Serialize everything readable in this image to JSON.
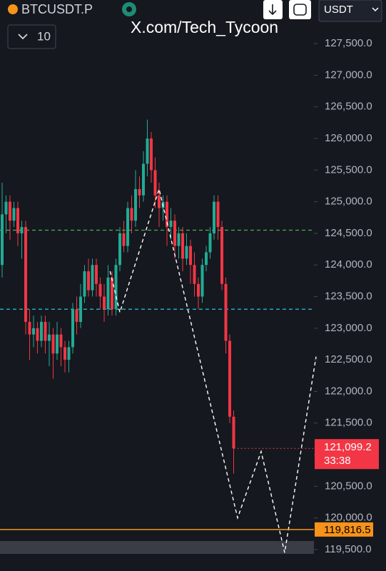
{
  "header": {
    "symbol": "BTCUSDT.P",
    "interval": "10",
    "watermark": "X.com/Tech_Tycoon",
    "quote": "USDT"
  },
  "chart_data": {
    "type": "candlestick",
    "open": [
      124000,
      124800,
      125000,
      124700,
      124900,
      124500,
      124600,
      123100,
      122900,
      123000,
      122800,
      123100,
      122800,
      122900,
      122600,
      122900,
      122700,
      122500,
      122700,
      123300,
      123100,
      123500,
      123900,
      123600,
      124000,
      123700,
      123500,
      123300,
      123800,
      123300,
      124000,
      124500,
      124300,
      124900,
      124700,
      125200,
      125100,
      125600,
      126000,
      125500,
      125100,
      124900,
      125000,
      124600,
      124700,
      124300,
      124500,
      124100,
      124300,
      124000,
      123700,
      123500,
      124000,
      124200,
      124500,
      125000,
      124600,
      123700,
      122800,
      121600
    ],
    "high": [
      125300,
      125100,
      125100,
      125000,
      125000,
      124700,
      124700,
      123300,
      123200,
      123100,
      123200,
      123200,
      123100,
      123000,
      123100,
      123000,
      122800,
      122800,
      123400,
      123500,
      123700,
      124000,
      124100,
      124100,
      124100,
      123800,
      123700,
      124000,
      123900,
      124100,
      124600,
      124700,
      125000,
      125100,
      125500,
      125400,
      125800,
      126300,
      126100,
      125700,
      125300,
      125100,
      125100,
      124900,
      124800,
      124600,
      124600,
      124500,
      124400,
      124200,
      123800,
      124100,
      124300,
      124600,
      125100,
      125100,
      124700,
      123800,
      122900,
      121700
    ],
    "low": [
      123800,
      124500,
      124400,
      124600,
      124300,
      124100,
      122900,
      122500,
      122700,
      122600,
      122700,
      122600,
      122400,
      122200,
      122500,
      122400,
      122300,
      122300,
      122600,
      122900,
      123000,
      123400,
      123500,
      123500,
      123500,
      123300,
      123100,
      123200,
      123200,
      123200,
      123900,
      124200,
      124200,
      124500,
      124600,
      124900,
      125000,
      125400,
      125300,
      124900,
      124600,
      124700,
      124300,
      124400,
      124100,
      124100,
      123900,
      124000,
      123700,
      123500,
      123300,
      123400,
      123900,
      124100,
      124400,
      124400,
      123600,
      122600,
      121500,
      120700
    ],
    "close": [
      124800,
      125000,
      124700,
      124900,
      124500,
      124600,
      123100,
      122900,
      123000,
      122800,
      123100,
      122800,
      122900,
      122600,
      122900,
      122700,
      122500,
      122700,
      123300,
      123100,
      123500,
      123900,
      123600,
      124000,
      123700,
      123500,
      123300,
      123800,
      123300,
      124000,
      124500,
      124300,
      124900,
      124700,
      125200,
      125100,
      125600,
      126000,
      125500,
      125100,
      124900,
      125000,
      124600,
      124700,
      124300,
      124500,
      124100,
      124300,
      124000,
      123700,
      123500,
      124000,
      124200,
      124500,
      125000,
      124600,
      123700,
      122800,
      121600,
      121099.2
    ],
    "up_color": "#22ab94",
    "down_color": "#f23645",
    "ylim": [
      119160,
      128190
    ],
    "yticks": [
      {
        "value": 119500,
        "label": "119,500.0"
      },
      {
        "value": 120000,
        "label": "120,000.0"
      },
      {
        "value": 120500,
        "label": "120,500.0"
      },
      {
        "value": 121000,
        "label": "121,000.0"
      },
      {
        "value": 121500,
        "label": "121,500.0"
      },
      {
        "value": 122000,
        "label": "122,000.0"
      },
      {
        "value": 122500,
        "label": "122,500.0"
      },
      {
        "value": 123000,
        "label": "123,000.0"
      },
      {
        "value": 123500,
        "label": "123,500.0"
      },
      {
        "value": 124000,
        "label": "124,000.0"
      },
      {
        "value": 124500,
        "label": "124,500.0"
      },
      {
        "value": 125000,
        "label": "125,000.0"
      },
      {
        "value": 125500,
        "label": "125,500.0"
      },
      {
        "value": 126000,
        "label": "126,000.0"
      },
      {
        "value": 126500,
        "label": "126,500.0"
      },
      {
        "value": 127000,
        "label": "127,000.0"
      },
      {
        "value": 127500,
        "label": "127,500.0"
      }
    ],
    "levels": [
      {
        "value": 124550,
        "color": "#4caf50"
      },
      {
        "value": 123300,
        "color": "#26c6da"
      }
    ],
    "pattern": {
      "x": [
        27.5,
        30,
        40,
        60,
        66,
        72,
        80
      ],
      "values": [
        123900,
        123250,
        125200,
        120000,
        121050,
        119450,
        122550
      ],
      "color": "#ffffff"
    },
    "mark_line": {
      "value": 119816.5,
      "label": "119,816.5",
      "color": "#f7931a"
    },
    "last_price": {
      "value": 121099.2,
      "label": "121,099.2",
      "countdown": "33:38",
      "color": "#f23645"
    }
  }
}
